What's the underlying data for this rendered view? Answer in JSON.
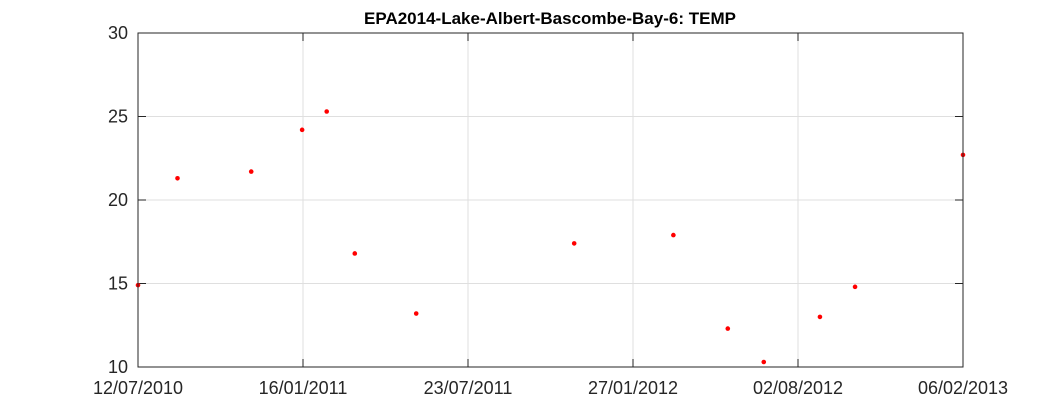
{
  "chart_data": {
    "type": "scatter",
    "title": "EPA2014-Lake-Albert-Bascombe-Bay-6: TEMP",
    "xlabel": "",
    "ylabel": "",
    "x_axis_type": "date",
    "xlim": [
      "2010-07-12",
      "2013-02-06"
    ],
    "ylim": [
      10,
      30
    ],
    "x_ticks": [
      "2010-07-12",
      "2011-01-16",
      "2011-07-23",
      "2012-01-27",
      "2012-08-02",
      "2013-02-06"
    ],
    "x_tick_labels": [
      "12/07/2010",
      "16/01/2011",
      "23/07/2011",
      "27/01/2012",
      "02/08/2012",
      "06/02/2013"
    ],
    "y_ticks": [
      10,
      15,
      20,
      25,
      30
    ],
    "y_tick_labels": [
      "10",
      "15",
      "20",
      "25",
      "30"
    ],
    "grid": true,
    "marker_color": "#ff0000",
    "points": [
      {
        "x": "2010-07-12",
        "y": 14.9
      },
      {
        "x": "2010-08-26",
        "y": 21.3
      },
      {
        "x": "2010-11-18",
        "y": 21.7
      },
      {
        "x": "2011-01-15",
        "y": 24.2
      },
      {
        "x": "2011-02-12",
        "y": 25.3
      },
      {
        "x": "2011-03-16",
        "y": 16.8
      },
      {
        "x": "2011-05-25",
        "y": 13.2
      },
      {
        "x": "2011-11-21",
        "y": 17.4
      },
      {
        "x": "2012-03-13",
        "y": 17.9
      },
      {
        "x": "2012-05-14",
        "y": 12.3
      },
      {
        "x": "2012-06-24",
        "y": 10.3
      },
      {
        "x": "2012-08-27",
        "y": 13.0
      },
      {
        "x": "2012-10-06",
        "y": 14.8
      },
      {
        "x": "2013-02-06",
        "y": 22.7
      }
    ]
  }
}
